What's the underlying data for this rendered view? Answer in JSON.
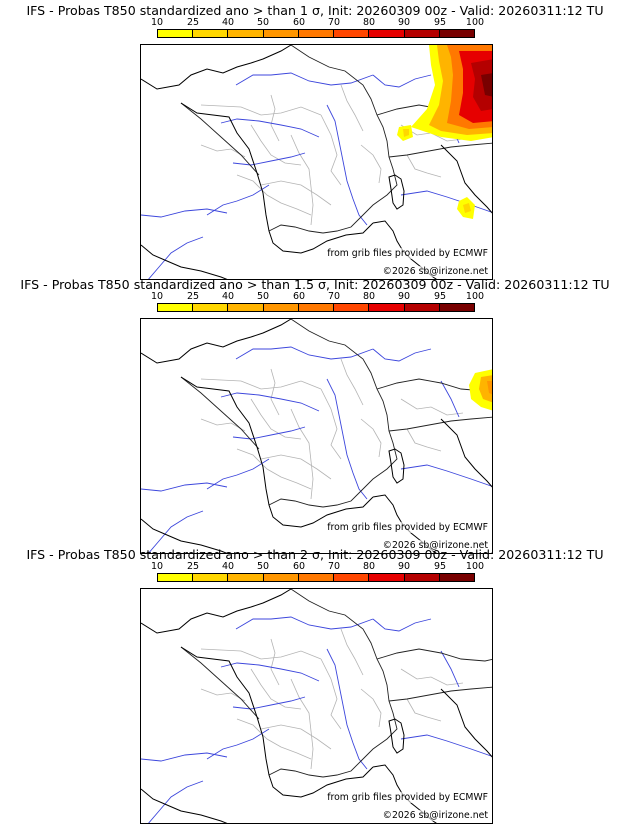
{
  "colorbar": {
    "ticks": [
      "10",
      "25",
      "40",
      "50",
      "60",
      "70",
      "80",
      "90",
      "95",
      "100"
    ],
    "colors": [
      "#ffff00",
      "#ffd700",
      "#ffb400",
      "#ff9600",
      "#ff7800",
      "#ff4600",
      "#e60000",
      "#b40000",
      "#780000"
    ]
  },
  "panels": [
    {
      "title": "IFS - Probas T850  standardized ano > than 1 σ, Init: 20260309 00z - Valid: 20260311:12 TU",
      "threshold_sigma": 1,
      "credit_source": "from grib files provided by ECMWF",
      "credit_copyright": "©2026 sb@irizone.net",
      "anomaly_regions": [
        {
          "area": "Alps and northeast edge",
          "max_probability_pct": 100
        },
        {
          "area": "Jura / Geneva area",
          "max_probability_pct": 25
        },
        {
          "area": "Central Italy",
          "max_probability_pct": 40
        }
      ]
    },
    {
      "title": "IFS - Probas T850  standardized ano > than 1.5 σ, Init: 20260309 00z - Valid: 20260311:12 TU",
      "threshold_sigma": 1.5,
      "credit_source": "from grib files provided by ECMWF",
      "credit_copyright": "©2026 sb@irizone.net",
      "anomaly_regions": [
        {
          "area": "Eastern Alps edge",
          "max_probability_pct": 50
        }
      ]
    },
    {
      "title": "IFS - Probas T850  standardized ano > than 2 σ, Init: 20260309 00z - Valid: 20260311:12 TU",
      "threshold_sigma": 2,
      "credit_source": "from grib files provided by ECMWF",
      "credit_copyright": "©2026 sb@irizone.net",
      "anomaly_regions": []
    }
  ]
}
